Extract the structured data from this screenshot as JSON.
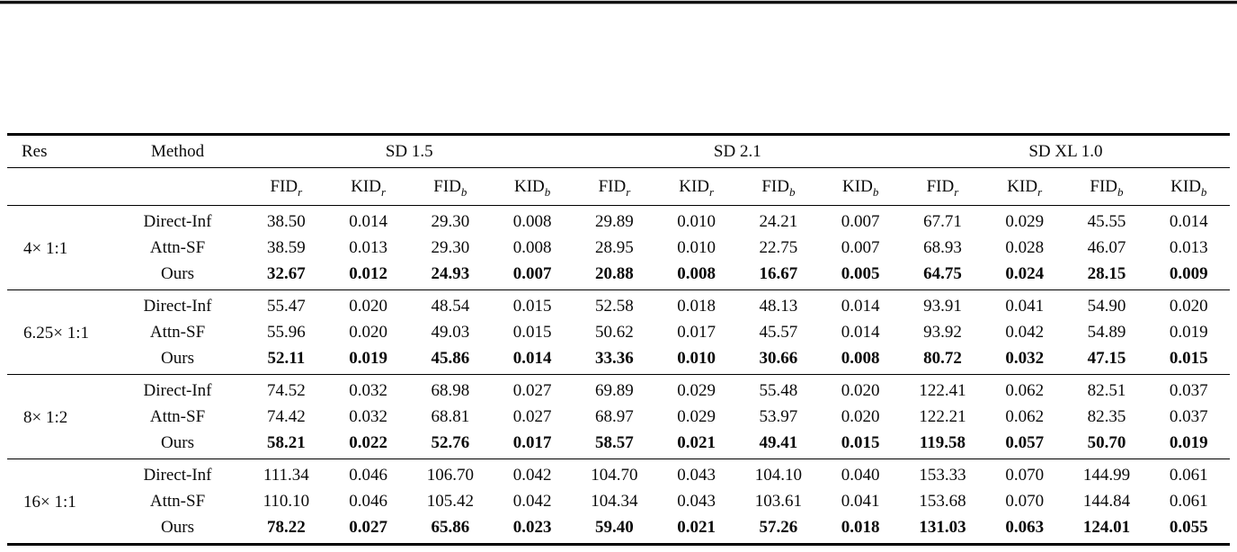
{
  "table": {
    "res_header": "Res",
    "method_header": "Method",
    "model_groups": [
      {
        "label": "SD 1.5"
      },
      {
        "label": "SD 2.1"
      },
      {
        "label": "SD XL 1.0"
      }
    ],
    "metric_headers": [
      {
        "name": "FID",
        "sub": "r"
      },
      {
        "name": "KID",
        "sub": "r"
      },
      {
        "name": "FID",
        "sub": "b"
      },
      {
        "name": "KID",
        "sub": "b"
      },
      {
        "name": "FID",
        "sub": "r"
      },
      {
        "name": "KID",
        "sub": "r"
      },
      {
        "name": "FID",
        "sub": "b"
      },
      {
        "name": "KID",
        "sub": "b"
      },
      {
        "name": "FID",
        "sub": "r"
      },
      {
        "name": "KID",
        "sub": "r"
      },
      {
        "name": "FID",
        "sub": "b"
      },
      {
        "name": "KID",
        "sub": "b"
      }
    ],
    "groups": [
      {
        "res": "4× 1:1",
        "rows": [
          {
            "method": "Direct-Inf",
            "bold": false,
            "values": [
              "38.50",
              "0.014",
              "29.30",
              "0.008",
              "29.89",
              "0.010",
              "24.21",
              "0.007",
              "67.71",
              "0.029",
              "45.55",
              "0.014"
            ]
          },
          {
            "method": "Attn-SF",
            "bold": false,
            "values": [
              "38.59",
              "0.013",
              "29.30",
              "0.008",
              "28.95",
              "0.010",
              "22.75",
              "0.007",
              "68.93",
              "0.028",
              "46.07",
              "0.013"
            ]
          },
          {
            "method": "Ours",
            "bold": true,
            "values": [
              "32.67",
              "0.012",
              "24.93",
              "0.007",
              "20.88",
              "0.008",
              "16.67",
              "0.005",
              "64.75",
              "0.024",
              "28.15",
              "0.009"
            ]
          }
        ]
      },
      {
        "res": "6.25× 1:1",
        "rows": [
          {
            "method": "Direct-Inf",
            "bold": false,
            "values": [
              "55.47",
              "0.020",
              "48.54",
              "0.015",
              "52.58",
              "0.018",
              "48.13",
              "0.014",
              "93.91",
              "0.041",
              "54.90",
              "0.020"
            ]
          },
          {
            "method": "Attn-SF",
            "bold": false,
            "values": [
              "55.96",
              "0.020",
              "49.03",
              "0.015",
              "50.62",
              "0.017",
              "45.57",
              "0.014",
              "93.92",
              "0.042",
              "54.89",
              "0.019"
            ]
          },
          {
            "method": "Ours",
            "bold": true,
            "values": [
              "52.11",
              "0.019",
              "45.86",
              "0.014",
              "33.36",
              "0.010",
              "30.66",
              "0.008",
              "80.72",
              "0.032",
              "47.15",
              "0.015"
            ]
          }
        ]
      },
      {
        "res": "8× 1:2",
        "rows": [
          {
            "method": "Direct-Inf",
            "bold": false,
            "values": [
              "74.52",
              "0.032",
              "68.98",
              "0.027",
              "69.89",
              "0.029",
              "55.48",
              "0.020",
              "122.41",
              "0.062",
              "82.51",
              "0.037"
            ]
          },
          {
            "method": "Attn-SF",
            "bold": false,
            "values": [
              "74.42",
              "0.032",
              "68.81",
              "0.027",
              "68.97",
              "0.029",
              "53.97",
              "0.020",
              "122.21",
              "0.062",
              "82.35",
              "0.037"
            ]
          },
          {
            "method": "Ours",
            "bold": true,
            "values": [
              "58.21",
              "0.022",
              "52.76",
              "0.017",
              "58.57",
              "0.021",
              "49.41",
              "0.015",
              "119.58",
              "0.057",
              "50.70",
              "0.019"
            ]
          }
        ]
      },
      {
        "res": "16× 1:1",
        "rows": [
          {
            "method": "Direct-Inf",
            "bold": false,
            "values": [
              "111.34",
              "0.046",
              "106.70",
              "0.042",
              "104.70",
              "0.043",
              "104.10",
              "0.040",
              "153.33",
              "0.070",
              "144.99",
              "0.061"
            ]
          },
          {
            "method": "Attn-SF",
            "bold": false,
            "values": [
              "110.10",
              "0.046",
              "105.42",
              "0.042",
              "104.34",
              "0.043",
              "103.61",
              "0.041",
              "153.68",
              "0.070",
              "144.84",
              "0.061"
            ]
          },
          {
            "method": "Ours",
            "bold": true,
            "values": [
              "78.22",
              "0.027",
              "65.86",
              "0.023",
              "59.40",
              "0.021",
              "57.26",
              "0.018",
              "131.03",
              "0.063",
              "124.01",
              "0.055"
            ]
          }
        ]
      }
    ]
  }
}
